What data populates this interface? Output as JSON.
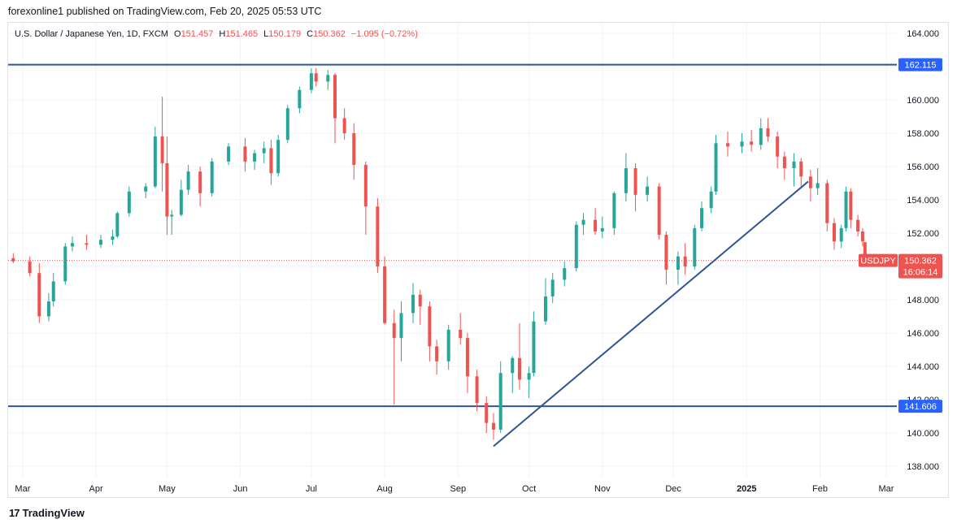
{
  "header": {
    "publisher": "forexonline1 published on TradingView.com, Feb 20, 2025 05:53 UTC"
  },
  "legend": {
    "symbol": "U.S. Dollar / Japanese Yen, 1D, FXCM",
    "o_label": "O",
    "o_value": "151.457",
    "h_label": "H",
    "h_value": "151.465",
    "l_label": "L",
    "l_value": "150.179",
    "c_label": "C",
    "c_value": "150.362",
    "change": "−1.095 (−0.72%)"
  },
  "footer": {
    "brand": "TradingView",
    "logo": "17"
  },
  "colors": {
    "up": "#26a69a",
    "down": "#ef5350",
    "line": "#2962ff",
    "level_line": "#2f5597",
    "price_tag": "#ef5350",
    "level_tag": "#2962ff"
  },
  "chart_data": {
    "type": "candlestick",
    "symbol_tag": "USDJPY",
    "last_price": "150.362",
    "countdown": "16:06:14",
    "ylim": [
      137.0,
      165.0
    ],
    "y_ticks": [
      "164.000",
      "162.000",
      "160.000",
      "158.000",
      "156.000",
      "154.000",
      "152.000",
      "150.000",
      "148.000",
      "146.000",
      "144.000",
      "142.000",
      "140.000",
      "138.000"
    ],
    "x_ticks": [
      "Mar",
      "Apr",
      "May",
      "Jun",
      "Jul",
      "Aug",
      "Sep",
      "Oct",
      "Nov",
      "Dec",
      "2025",
      "Feb",
      "Mar"
    ],
    "horizontal_levels": [
      {
        "label": "162.115",
        "value": 162.115
      },
      {
        "label": "141.606",
        "value": 141.606
      }
    ],
    "trendline": {
      "from": [
        "2024-09-16",
        139.2
      ],
      "to": [
        "2025-01-27",
        155.1
      ]
    },
    "candles": [
      [
        "2024-02-26",
        150.5,
        150.8,
        150.2,
        150.3
      ],
      [
        "2024-03-04",
        150.3,
        150.6,
        149.4,
        149.6
      ],
      [
        "2024-03-08",
        149.6,
        150.2,
        146.6,
        147.0
      ],
      [
        "2024-03-12",
        147.0,
        148.4,
        146.7,
        147.9
      ],
      [
        "2024-03-14",
        147.9,
        149.6,
        147.6,
        149.1
      ],
      [
        "2024-03-19",
        149.1,
        151.4,
        148.9,
        151.2
      ],
      [
        "2024-03-22",
        151.2,
        151.8,
        150.9,
        151.4
      ],
      [
        "2024-03-28",
        151.4,
        151.9,
        151.0,
        151.3
      ],
      [
        "2024-04-03",
        151.3,
        151.9,
        151.1,
        151.6
      ],
      [
        "2024-04-08",
        151.6,
        152.2,
        151.3,
        151.8
      ],
      [
        "2024-04-10",
        151.8,
        153.3,
        151.7,
        153.2
      ],
      [
        "2024-04-15",
        153.2,
        154.8,
        153.0,
        154.5
      ],
      [
        "2024-04-22",
        154.5,
        155.0,
        154.1,
        154.8
      ],
      [
        "2024-04-26",
        154.8,
        158.4,
        154.7,
        157.8
      ],
      [
        "2024-04-29",
        157.8,
        160.2,
        154.5,
        156.2
      ],
      [
        "2024-05-01",
        156.2,
        157.8,
        151.9,
        153.0
      ],
      [
        "2024-05-03",
        153.0,
        153.4,
        151.9,
        153.1
      ],
      [
        "2024-05-07",
        153.1,
        155.2,
        153.0,
        154.6
      ],
      [
        "2024-05-10",
        154.6,
        156.1,
        154.3,
        155.7
      ],
      [
        "2024-05-15",
        155.7,
        156.0,
        153.6,
        154.4
      ],
      [
        "2024-05-20",
        154.4,
        156.5,
        154.2,
        156.3
      ],
      [
        "2024-05-27",
        156.3,
        157.4,
        156.1,
        157.2
      ],
      [
        "2024-06-03",
        157.2,
        157.7,
        155.7,
        156.3
      ],
      [
        "2024-06-07",
        156.3,
        157.0,
        155.8,
        156.8
      ],
      [
        "2024-06-11",
        156.8,
        157.5,
        156.2,
        157.1
      ],
      [
        "2024-06-14",
        157.1,
        157.6,
        154.9,
        155.6
      ],
      [
        "2024-06-17",
        155.6,
        157.9,
        155.4,
        157.6
      ],
      [
        "2024-06-21",
        157.6,
        159.7,
        157.4,
        159.5
      ],
      [
        "2024-06-26",
        159.5,
        160.8,
        159.2,
        160.6
      ],
      [
        "2024-07-01",
        160.6,
        161.9,
        160.4,
        161.6
      ],
      [
        "2024-07-03",
        161.6,
        161.9,
        160.8,
        161.1
      ],
      [
        "2024-07-08",
        161.1,
        161.8,
        160.6,
        161.5
      ],
      [
        "2024-07-11",
        161.5,
        161.6,
        157.4,
        158.9
      ],
      [
        "2024-07-15",
        158.9,
        159.5,
        157.6,
        158.0
      ],
      [
        "2024-07-19",
        158.0,
        158.6,
        155.2,
        156.1
      ],
      [
        "2024-07-24",
        156.1,
        156.3,
        151.9,
        153.6
      ],
      [
        "2024-07-29",
        153.6,
        154.1,
        149.6,
        150.0
      ],
      [
        "2024-08-01",
        150.0,
        150.6,
        146.5,
        146.6
      ],
      [
        "2024-08-05",
        146.6,
        147.4,
        141.7,
        145.7
      ],
      [
        "2024-08-08",
        145.7,
        147.9,
        144.3,
        147.2
      ],
      [
        "2024-08-13",
        147.2,
        149.0,
        146.6,
        148.3
      ],
      [
        "2024-08-16",
        148.3,
        148.6,
        146.5,
        147.6
      ],
      [
        "2024-08-20",
        147.6,
        147.9,
        144.3,
        145.2
      ],
      [
        "2024-08-23",
        145.2,
        145.6,
        143.5,
        144.3
      ],
      [
        "2024-08-28",
        144.3,
        146.5,
        143.8,
        146.2
      ],
      [
        "2024-09-02",
        146.2,
        147.2,
        145.3,
        145.7
      ],
      [
        "2024-09-05",
        145.7,
        146.0,
        142.4,
        143.4
      ],
      [
        "2024-09-09",
        143.4,
        143.8,
        141.3,
        141.8
      ],
      [
        "2024-09-13",
        141.8,
        142.2,
        140.0,
        140.6
      ],
      [
        "2024-09-16",
        140.6,
        141.2,
        139.6,
        140.2
      ],
      [
        "2024-09-19",
        140.2,
        144.3,
        140.0,
        143.6
      ],
      [
        "2024-09-24",
        143.6,
        144.6,
        142.4,
        144.5
      ],
      [
        "2024-09-27",
        144.5,
        146.6,
        142.6,
        143.2
      ],
      [
        "2024-10-01",
        143.2,
        144.0,
        142.1,
        143.6
      ],
      [
        "2024-10-03",
        143.6,
        147.3,
        143.4,
        146.7
      ],
      [
        "2024-10-08",
        146.7,
        149.3,
        146.5,
        148.2
      ],
      [
        "2024-10-11",
        148.2,
        149.6,
        147.8,
        149.2
      ],
      [
        "2024-10-16",
        149.2,
        150.3,
        148.8,
        149.9
      ],
      [
        "2024-10-21",
        149.9,
        152.7,
        149.7,
        152.5
      ],
      [
        "2024-10-24",
        152.5,
        153.2,
        151.9,
        152.8
      ],
      [
        "2024-10-29",
        152.8,
        153.5,
        151.9,
        152.1
      ],
      [
        "2024-11-01",
        152.1,
        153.0,
        151.7,
        152.3
      ],
      [
        "2024-11-06",
        152.3,
        154.5,
        151.9,
        154.4
      ],
      [
        "2024-11-11",
        154.4,
        156.8,
        153.9,
        155.9
      ],
      [
        "2024-11-15",
        155.9,
        156.2,
        153.3,
        154.3
      ],
      [
        "2024-11-20",
        154.3,
        155.4,
        153.9,
        154.8
      ],
      [
        "2024-11-25",
        154.8,
        155.0,
        151.6,
        151.9
      ],
      [
        "2024-11-28",
        151.9,
        152.1,
        148.9,
        149.8
      ],
      [
        "2024-12-03",
        149.8,
        150.9,
        148.9,
        150.6
      ],
      [
        "2024-12-06",
        150.6,
        151.4,
        149.5,
        150.0
      ],
      [
        "2024-12-10",
        150.0,
        152.5,
        149.8,
        152.3
      ],
      [
        "2024-12-13",
        152.3,
        153.9,
        152.1,
        153.5
      ],
      [
        "2024-12-17",
        153.5,
        154.8,
        153.2,
        154.5
      ],
      [
        "2024-12-19",
        154.5,
        157.9,
        154.3,
        157.4
      ],
      [
        "2024-12-24",
        157.4,
        158.1,
        156.6,
        157.2
      ],
      [
        "2024-12-30",
        157.2,
        158.0,
        156.8,
        157.5
      ],
      [
        "2025-01-03",
        157.5,
        158.2,
        156.9,
        157.3
      ],
      [
        "2025-01-07",
        157.3,
        158.9,
        157.0,
        158.3
      ],
      [
        "2025-01-10",
        158.3,
        158.9,
        157.5,
        157.8
      ],
      [
        "2025-01-14",
        157.8,
        158.1,
        155.9,
        156.6
      ],
      [
        "2025-01-17",
        156.6,
        156.9,
        155.2,
        155.9
      ],
      [
        "2025-01-21",
        155.9,
        156.8,
        154.8,
        156.3
      ],
      [
        "2025-01-24",
        156.3,
        156.5,
        154.8,
        155.4
      ],
      [
        "2025-01-28",
        155.4,
        155.8,
        153.9,
        154.7
      ],
      [
        "2025-01-31",
        154.7,
        155.9,
        154.3,
        155.0
      ],
      [
        "2025-02-04",
        155.0,
        155.2,
        152.1,
        152.6
      ],
      [
        "2025-02-07",
        152.6,
        152.9,
        151.0,
        151.5
      ],
      [
        "2025-02-10",
        151.5,
        152.5,
        151.1,
        152.3
      ],
      [
        "2025-02-12",
        152.3,
        154.8,
        152.1,
        154.5
      ],
      [
        "2025-02-14",
        154.5,
        154.7,
        152.3,
        152.8
      ],
      [
        "2025-02-17",
        152.8,
        153.1,
        151.8,
        152.1
      ],
      [
        "2025-02-19",
        152.1,
        152.3,
        151.2,
        151.5
      ],
      [
        "2025-02-20",
        151.457,
        151.465,
        150.179,
        150.362
      ]
    ]
  }
}
